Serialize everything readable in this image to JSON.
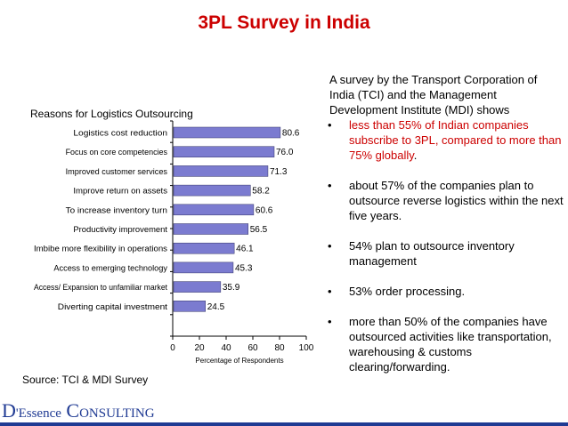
{
  "title": "3PL Survey in India",
  "chart_label": "Reasons for Logistics Outsourcing",
  "source": "Source: TCI & MDI Survey",
  "chart_data": {
    "type": "bar",
    "orientation": "horizontal",
    "categories": [
      "Logistics cost reduction",
      "Focus on core competencies",
      "Improved customer services",
      "Improve return on assets",
      "To increase inventory turn",
      "Productivity improvement",
      "Imbibe more flexibility in operations",
      "Access to emerging technology",
      "Access/ Expansion to unfamiliar market",
      "Diverting capital investment"
    ],
    "values": [
      80.6,
      76.0,
      71.3,
      58.2,
      60.6,
      56.5,
      46.1,
      45.3,
      35.9,
      24.5
    ],
    "value_labels": [
      "80.6",
      "76.0",
      "71.3",
      "58.2",
      "60.6",
      "56.5",
      "46.1",
      "45.3",
      "35.9",
      "24.5"
    ],
    "xlabel": "Percentage of Respondents",
    "xlim": [
      0,
      100
    ],
    "xticks": [
      "0",
      "20",
      "40",
      "60",
      "80",
      "100"
    ],
    "bar_color": "#7b7bd0"
  },
  "right_panel": {
    "intro": "A survey by the Transport Corporation of India (TCI) and the Management Development Institute (MDI) shows",
    "bullet_symbol": "•",
    "bullet1": "less than 55% of Indian companies subscribe to 3PL, compared to more than 75% globally",
    "bullet1_tail": ".",
    "bullet2": "about 57% of the companies plan to outsource reverse logistics within the next five years.",
    "bullet3": "54% plan to outsource inventory management",
    "bullet4": "53% order processing.",
    "bullet5": "more than 50% of the companies have outsourced activities like transportation, warehousing & customs clearing/forwarding."
  },
  "footer": {
    "d": "D",
    "essence": "'Essence",
    "c": "C",
    "onsulting": "ONSULTING"
  }
}
